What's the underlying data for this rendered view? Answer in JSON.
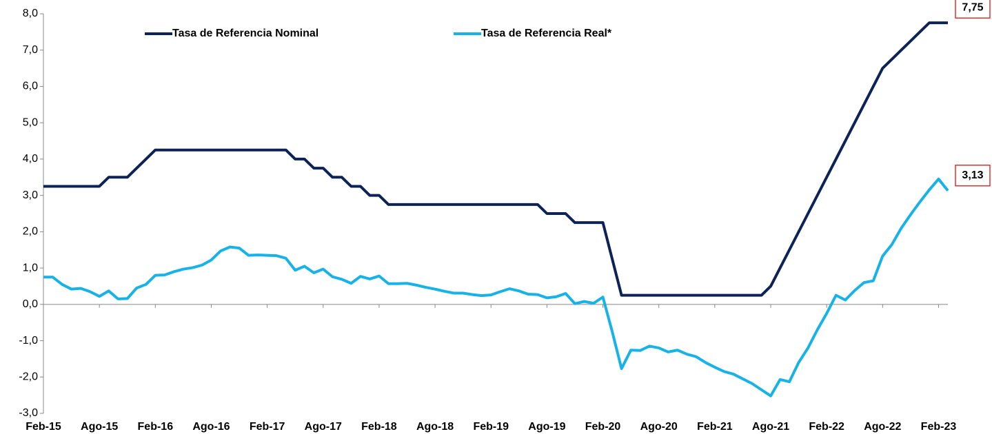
{
  "chart_data": {
    "type": "line",
    "categories": [
      "Feb-15",
      null,
      null,
      null,
      null,
      null,
      "Ago-15",
      null,
      null,
      null,
      null,
      null,
      "Feb-16",
      null,
      null,
      null,
      null,
      null,
      "Ago-16",
      null,
      null,
      null,
      null,
      null,
      "Feb-17",
      null,
      null,
      null,
      null,
      null,
      "Ago-17",
      null,
      null,
      null,
      null,
      null,
      "Feb-18",
      null,
      null,
      null,
      null,
      null,
      "Ago-18",
      null,
      null,
      null,
      null,
      null,
      "Feb-19",
      null,
      null,
      null,
      null,
      null,
      "Ago-19",
      null,
      null,
      null,
      null,
      null,
      "Feb-20",
      null,
      null,
      null,
      null,
      null,
      "Ago-20",
      null,
      null,
      null,
      null,
      null,
      "Feb-21",
      null,
      null,
      null,
      null,
      null,
      "Ago-21",
      null,
      null,
      null,
      null,
      null,
      "Feb-22",
      null,
      null,
      null,
      null,
      null,
      "Ago-22",
      null,
      null,
      null,
      null,
      null,
      "Feb-23",
      null
    ],
    "series": [
      {
        "name": "Tasa de Referencia Nominal",
        "color": "#0d2357",
        "values": [
          3.25,
          3.25,
          3.25,
          3.25,
          3.25,
          3.25,
          3.25,
          3.5,
          3.5,
          3.5,
          3.75,
          4.0,
          4.25,
          4.25,
          4.25,
          4.25,
          4.25,
          4.25,
          4.25,
          4.25,
          4.25,
          4.25,
          4.25,
          4.25,
          4.25,
          4.25,
          4.25,
          4.0,
          4.0,
          3.75,
          3.75,
          3.5,
          3.5,
          3.25,
          3.25,
          3.0,
          3.0,
          2.75,
          2.75,
          2.75,
          2.75,
          2.75,
          2.75,
          2.75,
          2.75,
          2.75,
          2.75,
          2.75,
          2.75,
          2.75,
          2.75,
          2.75,
          2.75,
          2.75,
          2.5,
          2.5,
          2.5,
          2.25,
          2.25,
          2.25,
          2.25,
          1.25,
          0.25,
          0.25,
          0.25,
          0.25,
          0.25,
          0.25,
          0.25,
          0.25,
          0.25,
          0.25,
          0.25,
          0.25,
          0.25,
          0.25,
          0.25,
          0.25,
          0.5,
          1.0,
          1.5,
          2.0,
          2.5,
          3.0,
          3.5,
          4.0,
          4.5,
          5.0,
          5.5,
          6.0,
          6.5,
          6.75,
          7.0,
          7.25,
          7.5,
          7.75,
          7.75,
          7.75
        ],
        "value_labels": [
          null,
          null,
          null,
          null,
          null,
          null,
          null,
          null,
          null,
          null,
          null,
          null,
          null,
          null,
          null,
          null,
          null,
          null,
          null,
          null,
          null,
          null,
          null,
          null,
          null,
          null,
          null,
          null,
          null,
          null,
          null,
          null,
          null,
          null,
          null,
          null,
          null,
          null,
          null,
          null,
          null,
          null,
          null,
          null,
          null,
          null,
          null,
          null,
          null,
          null,
          null,
          null,
          null,
          null,
          null,
          null,
          null,
          null,
          null,
          null,
          null,
          null,
          null,
          null,
          null,
          null,
          null,
          null,
          null,
          null,
          null,
          null,
          null,
          null,
          null,
          null,
          null,
          null,
          null,
          null,
          null,
          null,
          null,
          null,
          null,
          null,
          null,
          null,
          null,
          null,
          null,
          null,
          null,
          null,
          null,
          null,
          null,
          "7,75"
        ]
      },
      {
        "name": "Tasa de Referencia Real*",
        "color": "#17b2e8",
        "values": [
          0.75,
          0.75,
          0.55,
          0.42,
          0.44,
          0.35,
          0.22,
          0.37,
          0.15,
          0.16,
          0.45,
          0.55,
          0.8,
          0.81,
          0.9,
          0.97,
          1.01,
          1.08,
          1.22,
          1.47,
          1.58,
          1.55,
          1.35,
          1.36,
          1.35,
          1.34,
          1.27,
          0.94,
          1.05,
          0.87,
          0.97,
          0.76,
          0.69,
          0.58,
          0.77,
          0.7,
          0.78,
          0.57,
          0.57,
          0.58,
          0.53,
          0.47,
          0.42,
          0.36,
          0.31,
          0.31,
          0.27,
          0.24,
          0.26,
          0.35,
          0.43,
          0.37,
          0.28,
          0.27,
          0.18,
          0.21,
          0.3,
          0.02,
          0.08,
          0.03,
          0.2,
          -0.75,
          -1.77,
          -1.26,
          -1.27,
          -1.15,
          -1.2,
          -1.31,
          -1.26,
          -1.37,
          -1.44,
          -1.6,
          -1.73,
          -1.85,
          -1.92,
          -2.05,
          -2.18,
          -2.35,
          -2.52,
          -2.07,
          -2.13,
          -1.6,
          -1.2,
          -0.7,
          -0.25,
          0.25,
          0.12,
          0.38,
          0.6,
          0.65,
          1.33,
          1.65,
          2.1,
          2.47,
          2.82,
          3.15,
          3.45,
          3.13
        ],
        "value_labels": [
          null,
          null,
          null,
          null,
          null,
          null,
          null,
          null,
          null,
          null,
          null,
          null,
          null,
          null,
          null,
          null,
          null,
          null,
          null,
          null,
          null,
          null,
          null,
          null,
          null,
          null,
          null,
          null,
          null,
          null,
          null,
          null,
          null,
          null,
          null,
          null,
          null,
          null,
          null,
          null,
          null,
          null,
          null,
          null,
          null,
          null,
          null,
          null,
          null,
          null,
          null,
          null,
          null,
          null,
          null,
          null,
          null,
          null,
          null,
          null,
          null,
          null,
          null,
          null,
          null,
          null,
          null,
          null,
          null,
          null,
          null,
          null,
          null,
          null,
          null,
          null,
          null,
          null,
          null,
          null,
          null,
          null,
          null,
          null,
          null,
          null,
          null,
          null,
          null,
          null,
          null,
          null,
          null,
          null,
          null,
          null,
          null,
          "3,13"
        ]
      }
    ],
    "ylim": [
      -3,
      8
    ],
    "yticks": [
      {
        "value": -3,
        "label": "-3,0"
      },
      {
        "value": -2,
        "label": "-2,0"
      },
      {
        "value": -1,
        "label": "-1,0"
      },
      {
        "value": 0,
        "label": "0,0"
      },
      {
        "value": 1,
        "label": "1,0"
      },
      {
        "value": 2,
        "label": "2,0"
      },
      {
        "value": 3,
        "label": "3,0"
      },
      {
        "value": 4,
        "label": "4,0"
      },
      {
        "value": 5,
        "label": "5,0"
      },
      {
        "value": 6,
        "label": "6,0"
      },
      {
        "value": 7,
        "label": "7,0"
      },
      {
        "value": 8,
        "label": "8,0"
      }
    ],
    "grid": false
  }
}
